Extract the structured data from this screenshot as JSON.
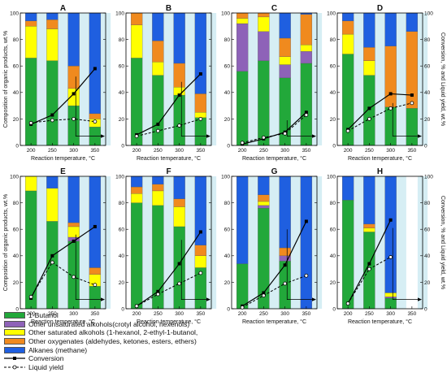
{
  "colors": {
    "butanol": "#22a83a",
    "unsat": "#8e62b8",
    "sat": "#ffff00",
    "oxy": "#f08a1e",
    "alk": "#1f5fe0",
    "band": "#d6eef4"
  },
  "axis_texts": {
    "ylabel_left": "Composition of organic products, wt.%",
    "ylabel_right": "Conversion, % and Liquid yield, wt.%",
    "xlabel": "Reaction temperature, °C"
  },
  "legend": {
    "items": [
      {
        "label": "1-Butanol",
        "color": "#22a83a"
      },
      {
        "label": "Other unsaturated alkohols(crotyl alcohol, hexenols)",
        "color": "#8e62b8"
      },
      {
        "label": "Other saturated alkohols (1-hexanol, 2-ethyl-1-butanol,",
        "color": "#ffff00"
      },
      {
        "label": "Other oxygenates (aldehydes, ketones, esters, ethers)",
        "color": "#f08a1e"
      },
      {
        "label": "Alkanes (methane)",
        "color": "#1f5fe0"
      }
    ],
    "conversion_label": "Conversion",
    "yield_label": "Liquid yield"
  },
  "chart_data": [
    {
      "type": "bar",
      "panel_label": "A",
      "categories": [
        "200",
        "250",
        "300",
        "350"
      ],
      "ylim": [
        0,
        100
      ],
      "series": [
        {
          "values": [
            66,
            64,
            30,
            14
          ]
        },
        {
          "values": [
            0,
            0,
            0,
            0
          ]
        },
        {
          "values": [
            24,
            24,
            13,
            6
          ]
        },
        {
          "values": [
            4,
            7,
            17,
            4
          ]
        },
        {
          "values": [
            6,
            5,
            40,
            76
          ]
        }
      ],
      "conversion": [
        16,
        23,
        39,
        58
      ],
      "liquid_yield": [
        17,
        19,
        20,
        18
      ]
    },
    {
      "type": "bar",
      "panel_label": "B",
      "categories": [
        "200",
        "250",
        "300",
        "350"
      ],
      "ylim": [
        0,
        100
      ],
      "series": [
        {
          "values": [
            66,
            53,
            38,
            21
          ]
        },
        {
          "values": [
            0,
            0,
            0,
            0
          ]
        },
        {
          "values": [
            25,
            10,
            6,
            4
          ]
        },
        {
          "values": [
            9,
            16,
            18,
            14
          ]
        },
        {
          "values": [
            0,
            21,
            38,
            61
          ]
        }
      ],
      "conversion": [
        8,
        16,
        38,
        54
      ],
      "liquid_yield": [
        7,
        11,
        15,
        20
      ]
    },
    {
      "type": "bar",
      "panel_label": "C",
      "categories": [
        "200",
        "250",
        "300",
        "350"
      ],
      "ylim": [
        0,
        100
      ],
      "series": [
        {
          "values": [
            56,
            64,
            51,
            62
          ]
        },
        {
          "values": [
            36,
            22,
            10,
            9
          ]
        },
        {
          "values": [
            4,
            11,
            6,
            5
          ]
        },
        {
          "values": [
            4,
            3,
            14,
            23
          ]
        },
        {
          "values": [
            0,
            0,
            19,
            1
          ]
        }
      ],
      "conversion": [
        1,
        5,
        10,
        25
      ],
      "liquid_yield": [
        2,
        6,
        9,
        23
      ]
    },
    {
      "type": "bar",
      "panel_label": "D",
      "categories": [
        "200",
        "250",
        "300",
        "350"
      ],
      "ylim": [
        0,
        100
      ],
      "series": [
        {
          "values": [
            69,
            53,
            29,
            28
          ]
        },
        {
          "values": [
            0,
            0,
            0,
            0
          ]
        },
        {
          "values": [
            15,
            11,
            0,
            0
          ]
        },
        {
          "values": [
            10,
            10,
            46,
            58
          ]
        },
        {
          "values": [
            6,
            26,
            25,
            14
          ]
        }
      ],
      "conversion": [
        12,
        28,
        39,
        38
      ],
      "liquid_yield": [
        11,
        20,
        28,
        32
      ]
    },
    {
      "type": "bar",
      "panel_label": "E",
      "categories": [
        "200",
        "250",
        "300",
        "350"
      ],
      "ylim": [
        0,
        100
      ],
      "series": [
        {
          "values": [
            89,
            66,
            51,
            17
          ]
        },
        {
          "values": [
            0,
            0,
            3,
            0
          ]
        },
        {
          "values": [
            11,
            25,
            8,
            9
          ]
        },
        {
          "values": [
            0,
            0,
            3,
            5
          ]
        },
        {
          "values": [
            0,
            9,
            35,
            69
          ]
        }
      ],
      "conversion": [
        8,
        40,
        51,
        62
      ],
      "liquid_yield": [
        9,
        35,
        24,
        18
      ]
    },
    {
      "type": "bar",
      "panel_label": "F",
      "categories": [
        "200",
        "250",
        "300",
        "350"
      ],
      "ylim": [
        0,
        100
      ],
      "series": [
        {
          "values": [
            80,
            78,
            62,
            31
          ]
        },
        {
          "values": [
            0,
            0,
            0,
            0
          ]
        },
        {
          "values": [
            7,
            11,
            15,
            9
          ]
        },
        {
          "values": [
            5,
            5,
            6,
            8
          ]
        },
        {
          "values": [
            8,
            6,
            17,
            52
          ]
        }
      ],
      "conversion": [
        2,
        13,
        34,
        58
      ],
      "liquid_yield": [
        2,
        11,
        19,
        27
      ]
    },
    {
      "type": "bar",
      "panel_label": "G",
      "categories": [
        "200",
        "250",
        "300",
        "350"
      ],
      "ylim": [
        0,
        100
      ],
      "series": [
        {
          "values": [
            34,
            76,
            36,
            0
          ]
        },
        {
          "values": [
            0,
            2,
            4,
            0
          ]
        },
        {
          "values": [
            0,
            3,
            0,
            0
          ]
        },
        {
          "values": [
            0,
            5,
            6,
            0
          ]
        },
        {
          "values": [
            66,
            14,
            54,
            100
          ]
        }
      ],
      "conversion": [
        2,
        12,
        33,
        66
      ],
      "liquid_yield": [
        1,
        10,
        19,
        25
      ]
    },
    {
      "type": "bar",
      "panel_label": "H",
      "categories": [
        "200",
        "250",
        "300",
        "350"
      ],
      "ylim": [
        0,
        100
      ],
      "series": [
        {
          "values": [
            82,
            58,
            8,
            0
          ]
        },
        {
          "values": [
            0,
            0,
            1,
            0
          ]
        },
        {
          "values": [
            0,
            3,
            3,
            0
          ]
        },
        {
          "values": [
            0,
            3,
            0,
            0
          ]
        },
        {
          "values": [
            18,
            36,
            88,
            0
          ]
        }
      ],
      "conversion": [
        4,
        34,
        67,
        0
      ],
      "liquid_yield": [
        4,
        30,
        39,
        0
      ]
    }
  ]
}
